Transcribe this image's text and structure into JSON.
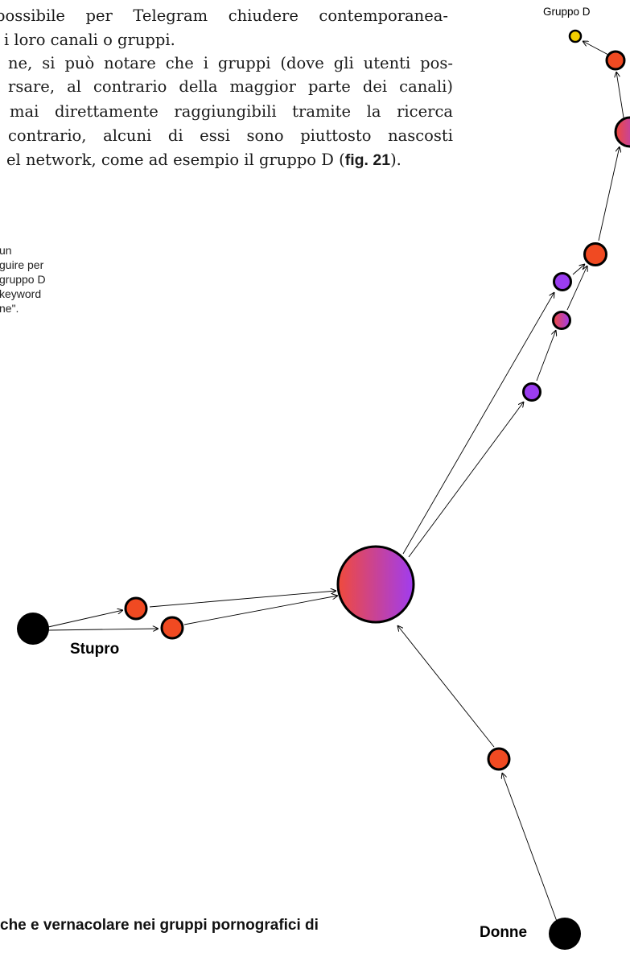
{
  "body_text": {
    "lines": [
      "possibile per Telegram chiudere contemporanea-",
      "i loro canali o gruppi.",
      "ne, si può notare che i gruppi (dove gli utenti pos-",
      "rsare, al contrario della maggior parte dei canali)",
      "mai direttamente raggiungibili tramite la ricerca",
      "contrario, alcuni di essi sono piuttosto nascosti"
    ],
    "last_line_prefix": "el network, come ad esempio il gruppo D (",
    "figure_ref": "fig. 21",
    "last_line_suffix": ")."
  },
  "side_caption": {
    "lines": [
      "un",
      "guire per",
      "gruppo D",
      "keyword",
      "ne\"."
    ]
  },
  "graph": {
    "labels": {
      "gruppo_d": "Gruppo D",
      "stupro": "Stupro",
      "donne": "Donne"
    },
    "colors": {
      "orange": "#f04a22",
      "purple": "#9b3df0",
      "yellow": "#f5d000",
      "black": "#000000",
      "gradient_start": "#f04a3c",
      "gradient_end": "#a03cf0"
    }
  },
  "footer": {
    "title": "che e vernacolare nei gruppi pornografici di"
  }
}
